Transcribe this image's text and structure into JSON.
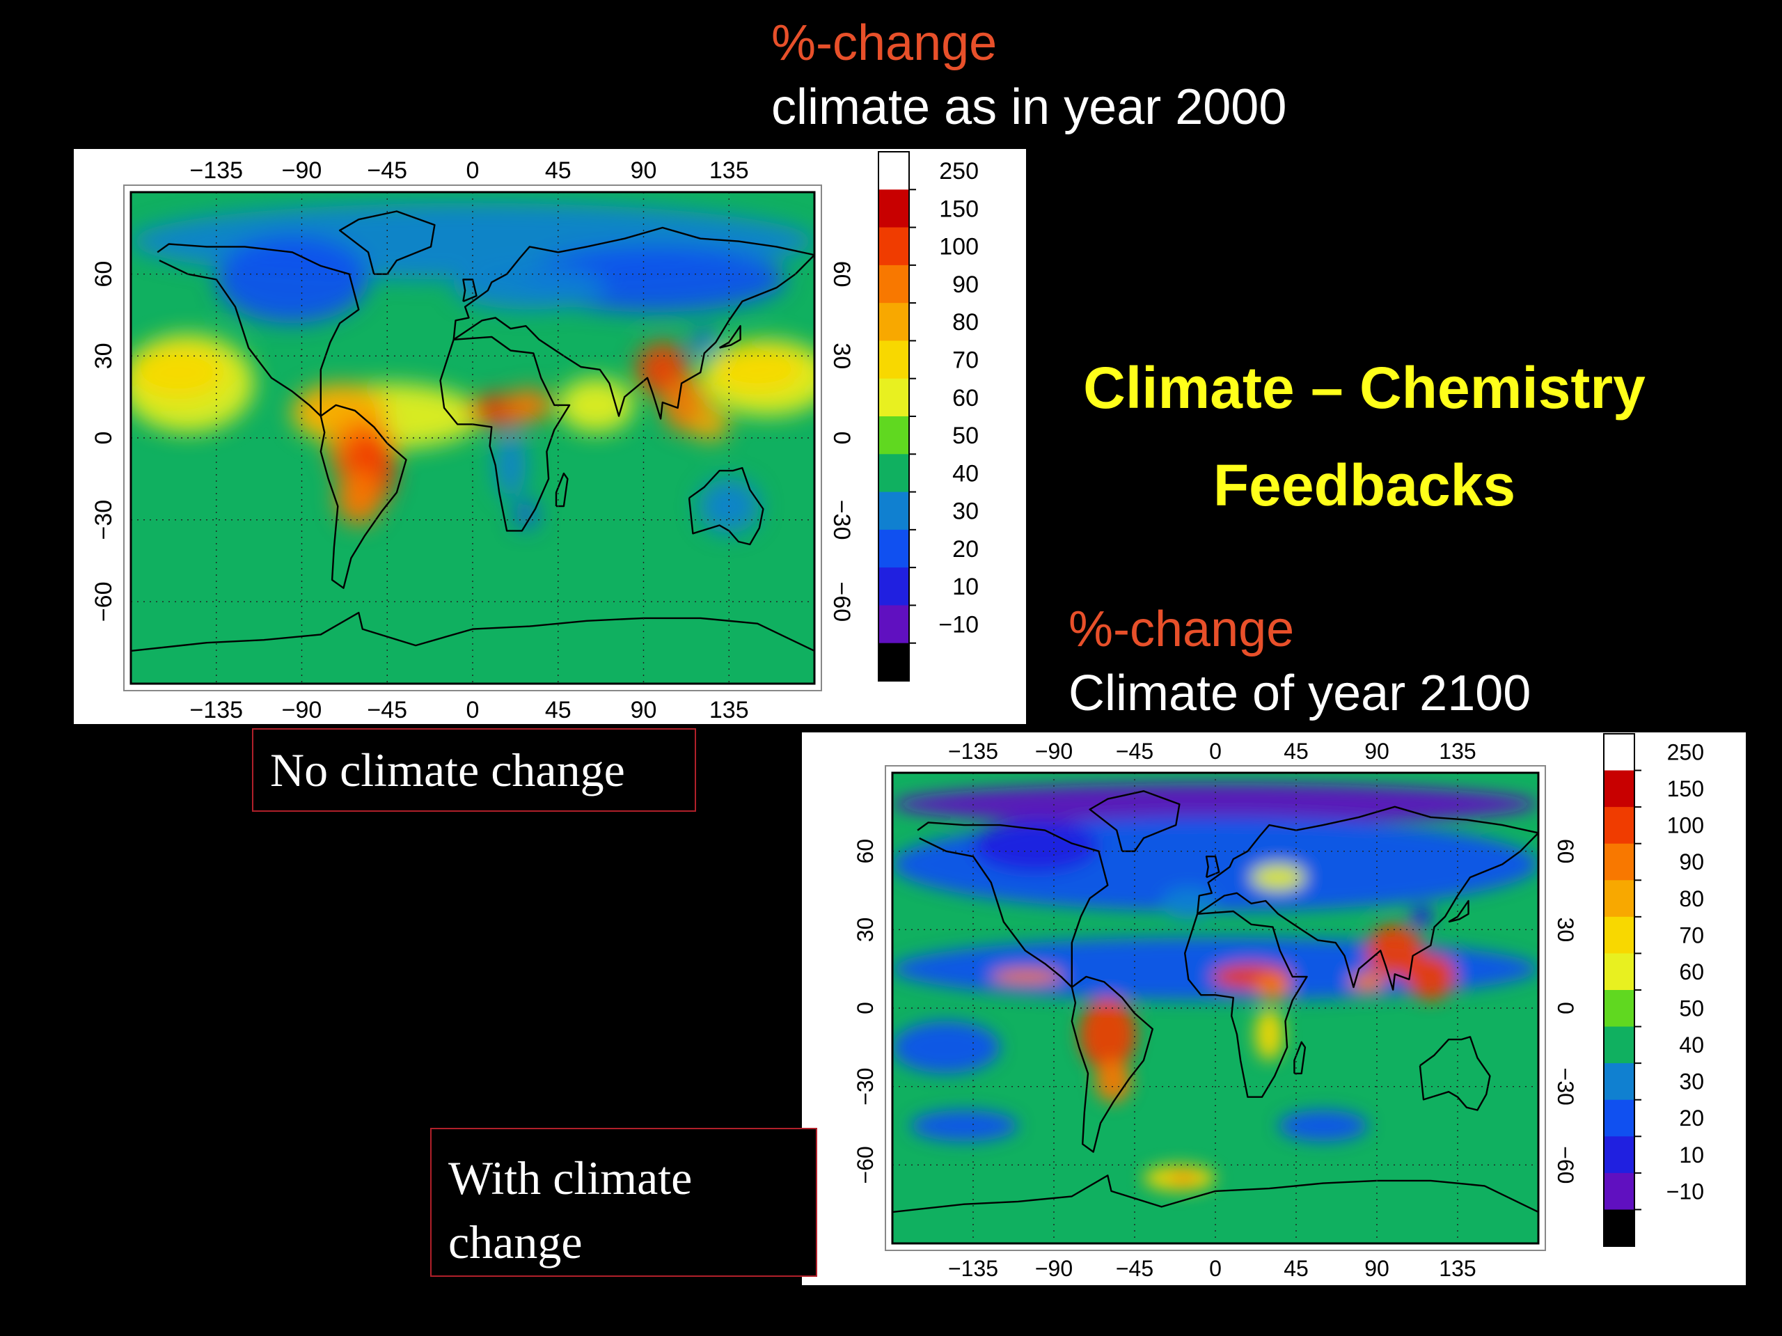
{
  "slide": {
    "title_line1": "Climate – Chemistry",
    "title_line2": "Feedbacks"
  },
  "top_panel": {
    "header_metric": "%-change",
    "header_desc": "climate as in year 2000",
    "caption": "No climate change"
  },
  "bottom_panel": {
    "header_metric": "%-change",
    "header_desc": "Climate of year 2100",
    "caption_line1": "With climate",
    "caption_line2": "change"
  },
  "map_axes": {
    "lon_ticks": [
      "−135",
      "−90",
      "−45",
      "0",
      "45",
      "90",
      "135"
    ],
    "lon_values": [
      -135,
      -90,
      -45,
      0,
      45,
      90,
      135
    ],
    "lat_ticks": [
      "60",
      "30",
      "0",
      "−30",
      "−60"
    ],
    "lat_values": [
      60,
      30,
      0,
      -30,
      -60
    ],
    "lon_range": [
      -180,
      180
    ],
    "lat_range": [
      -90,
      90
    ],
    "grid": "dotted"
  },
  "colorbar": {
    "labels": [
      "250",
      "150",
      "100",
      "90",
      "80",
      "70",
      "60",
      "50",
      "40",
      "30",
      "20",
      "10",
      "−10"
    ],
    "colors": [
      "#ffffff",
      "#c80000",
      "#f03c00",
      "#f87800",
      "#f8a800",
      "#f8d800",
      "#e8f020",
      "#60d820",
      "#10b060",
      "#1080d0",
      "#1050f0",
      "#2020e0",
      "#6010c0",
      "#000000"
    ]
  },
  "colors": {
    "background": "#000000",
    "header_red": "#e8502a",
    "title_yellow": "#ffff1a",
    "caption_border": "#b0202a"
  }
}
